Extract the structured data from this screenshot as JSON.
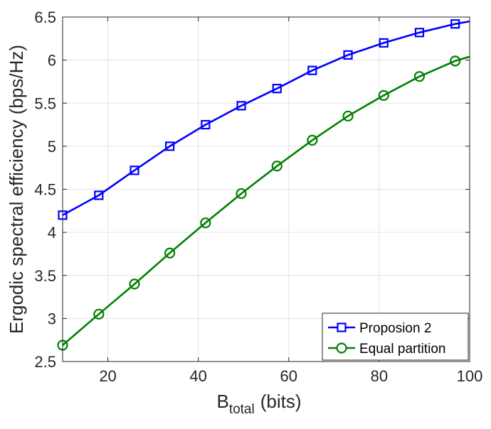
{
  "chart_data": {
    "type": "line",
    "xlabel": {
      "main": "B",
      "sub": "total",
      "unit": "(bits)"
    },
    "ylabel": "Ergodic spectral efficiency (bps/Hz)",
    "xlim": [
      10,
      100
    ],
    "ylim": [
      2.5,
      6.5
    ],
    "xticks": [
      20,
      40,
      60,
      80,
      100
    ],
    "yticks": [
      2.5,
      3,
      3.5,
      4,
      4.5,
      5,
      5.5,
      6,
      6.5
    ],
    "xtick_labels": [
      "20",
      "40",
      "60",
      "80",
      "100"
    ],
    "ytick_labels": [
      "2.5",
      "3",
      "3.5",
      "4",
      "4.5",
      "5",
      "5.5",
      "6",
      "6.5"
    ],
    "grid": true,
    "legend_position": "bottom-right",
    "series": [
      {
        "name": "Proposion 2",
        "color": "#0000ff",
        "marker": "square",
        "x": [
          10,
          18,
          25.9,
          33.7,
          41.6,
          49.5,
          57.4,
          65.2,
          73.1,
          81,
          88.9,
          96.8,
          100
        ],
        "y": [
          4.2,
          4.43,
          4.72,
          5.0,
          5.25,
          5.47,
          5.67,
          5.88,
          6.06,
          6.2,
          6.32,
          6.42,
          6.45
        ],
        "marker_count": 12
      },
      {
        "name": "Equal partition",
        "color": "#008000",
        "marker": "circle",
        "x": [
          10,
          18,
          25.9,
          33.7,
          41.6,
          49.5,
          57.4,
          65.2,
          73.1,
          81,
          88.9,
          96.8,
          100
        ],
        "y": [
          2.69,
          3.05,
          3.4,
          3.76,
          4.11,
          4.45,
          4.77,
          5.07,
          5.35,
          5.59,
          5.81,
          5.99,
          6.04
        ],
        "marker_count": 12
      }
    ]
  }
}
